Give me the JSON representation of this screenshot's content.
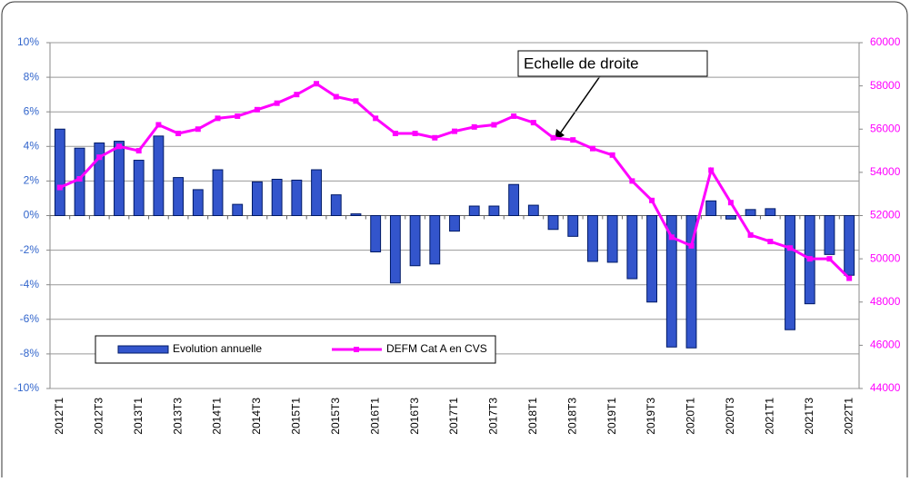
{
  "chart_data": {
    "type": "bar",
    "categories": [
      "2012T1",
      null,
      "2012T3",
      null,
      "2013T1",
      null,
      "2013T3",
      null,
      "2014T1",
      null,
      "2014T3",
      null,
      "2015T1",
      null,
      "2015T3",
      null,
      "2016T1",
      null,
      "2016T3",
      null,
      "2017T1",
      null,
      "2017T3",
      null,
      "2018T1",
      null,
      "2018T3",
      null,
      "2019T1",
      null,
      "2019T3",
      null,
      "2020T1",
      null,
      "2020T3",
      null,
      "2021T1",
      null,
      "2021T3",
      null,
      "2022T1"
    ],
    "series": [
      {
        "name": "Evolution annuelle",
        "type": "bar",
        "color": "#3355cc",
        "values": [
          5.0,
          3.9,
          4.2,
          4.3,
          3.2,
          4.6,
          2.2,
          1.5,
          2.65,
          0.65,
          1.95,
          2.1,
          2.05,
          2.65,
          1.2,
          0.1,
          -2.1,
          -3.9,
          -2.9,
          -2.8,
          -0.9,
          0.55,
          0.55,
          1.8,
          0.6,
          -0.8,
          -1.2,
          -2.65,
          -2.7,
          -3.65,
          -5.0,
          -7.6,
          -7.65,
          0.85,
          -0.2,
          0.35,
          0.4,
          -6.6,
          -5.1,
          -2.25,
          -3.45
        ]
      },
      {
        "name": "DEFM Cat A en CVS",
        "type": "line",
        "axis": "y2",
        "color": "#ff00ff",
        "values": [
          53300,
          53700,
          54700,
          55200,
          55000,
          56200,
          55800,
          56000,
          56500,
          56600,
          56900,
          57200,
          57600,
          58100,
          57500,
          57300,
          56500,
          55800,
          55800,
          55600,
          55900,
          56100,
          56200,
          56600,
          56300,
          55600,
          55500,
          55100,
          54800,
          53600,
          52700,
          51000,
          50600,
          54100,
          52600,
          51100,
          50800,
          50500,
          50000,
          50000,
          49100
        ]
      }
    ],
    "ylim": [
      -10,
      10
    ],
    "yticks": [
      {
        "value": -10,
        "label": "-10%"
      },
      {
        "value": -8,
        "label": "-8%"
      },
      {
        "value": -6,
        "label": "-6%"
      },
      {
        "value": -4,
        "label": "-4%"
      },
      {
        "value": -2,
        "label": "-2%"
      },
      {
        "value": 0,
        "label": "0%"
      },
      {
        "value": 2,
        "label": "2%"
      },
      {
        "value": 4,
        "label": "4%"
      },
      {
        "value": 6,
        "label": "6%"
      },
      {
        "value": 8,
        "label": "8%"
      },
      {
        "value": 10,
        "label": "10%"
      }
    ],
    "y2lim": [
      44000,
      60000
    ],
    "y2ticks": [
      44000,
      46000,
      48000,
      50000,
      52000,
      54000,
      56000,
      58000,
      60000
    ],
    "grid": true,
    "legend": "lower left",
    "annotation": "Echelle de droite"
  }
}
